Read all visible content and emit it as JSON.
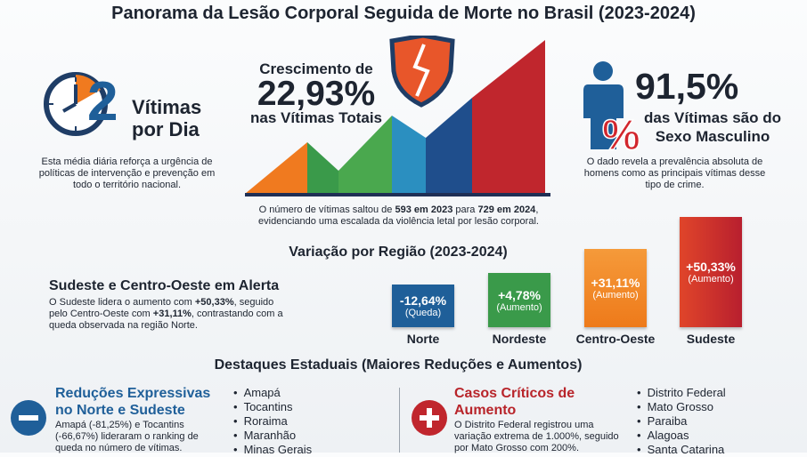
{
  "title": "Panorama da Lesão Corporal Seguida de Morte no Brasil (2023-2024)",
  "daily": {
    "number": "2",
    "label_lines": [
      "Vítimas",
      "por Dia"
    ],
    "description": "Esta média diária reforça a urgência de políticas de intervenção e prevenção em todo o território nacional."
  },
  "growth": {
    "lead": "Crescimento de",
    "value": "22,93%",
    "tail": "nas Vítimas Totais",
    "caption": [
      "O número de vítimas saltou de ",
      "593 em 2023",
      " para ",
      "729 em 2024",
      ", evidenciando uma escalada da violência letal por lesão corporal."
    ]
  },
  "male": {
    "value": "91,5%",
    "label_lines": [
      "das Vítimas são do",
      "Sexo Masculino"
    ],
    "description": "O dado revela a prevalência absoluta de homens como as principais vítimas desse tipo de crime."
  },
  "regions_title": "Variação por Região (2023-2024)",
  "alert": {
    "heading": "Sudeste e Centro-Oeste em Alerta",
    "text": [
      "O Sudeste lidera o aumento com ",
      "+50,33%",
      ", seguido pelo Centro-Oeste com ",
      "+31,11%",
      ", contrastando com a queda observada na região Norte."
    ]
  },
  "regions": [
    {
      "name": "Norte",
      "change": "-12,64%",
      "note": "(Queda)"
    },
    {
      "name": "Nordeste",
      "change": "+4,78%",
      "note": "(Aumento)"
    },
    {
      "name": "Centro-Oeste",
      "change": "+31,11%",
      "note": "(Aumento)"
    },
    {
      "name": "Sudeste",
      "change": "+50,33%",
      "note": "(Aumento)"
    }
  ],
  "states_title": "Destaques Estaduais (Maiores Reduções e Aumentos)",
  "reductions": {
    "heading": [
      "Reduções Expressivas",
      "no Norte e Sudeste"
    ],
    "description": "Amapá (-81,25%) e Tocantins (-66,67%) lideraram o ranking de queda no número de vítimas.",
    "states": [
      "Amapá",
      "Tocantins",
      "Roraima",
      "Maranhão",
      "Minas Gerais"
    ]
  },
  "increases": {
    "heading": [
      "Casos Críticos de",
      "Aumento"
    ],
    "description": "O Distrito Federal registrou uma variação extrema de 1.000%, seguido por Mato Grosso com 200%.",
    "states": [
      "Distrito Federal",
      "Mato Grosso",
      "Paraiba",
      "Alagoas",
      "Santa Catarina"
    ]
  }
}
